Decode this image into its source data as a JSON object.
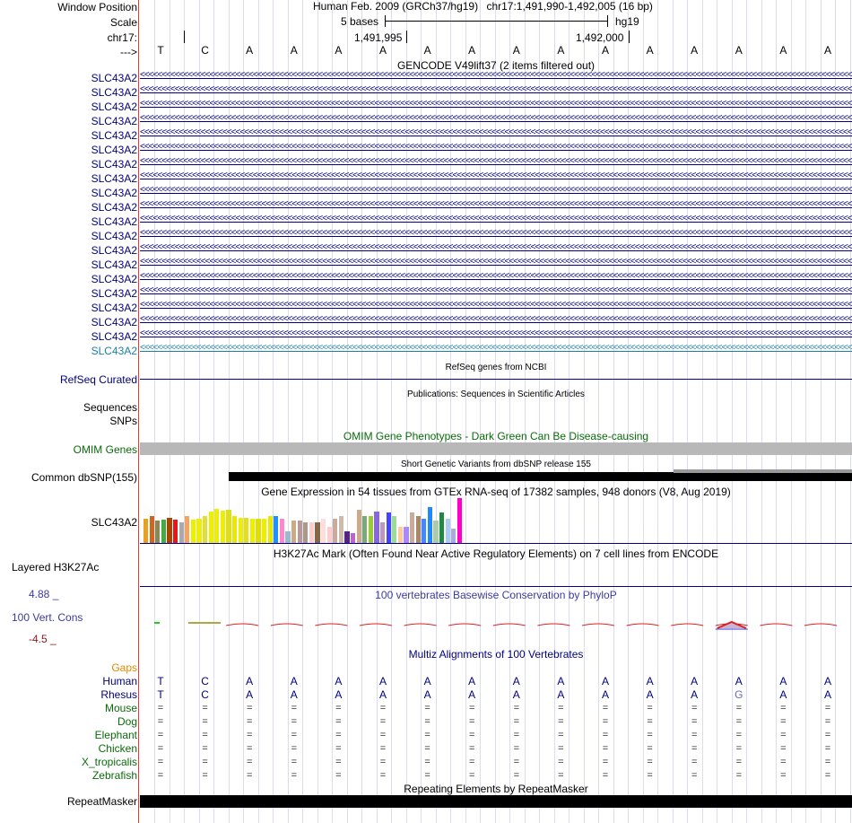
{
  "header": {
    "window_position_label": "Window Position",
    "scale_label": "Scale",
    "chrom_label": "chr17:",
    "strand_label": "--->",
    "assembly_text": "Human Feb. 2009 (GRCh37/hg19)",
    "position_text": "chr17:1,491,990-1,492,005 (16 bp)",
    "scale_text": "5 bases",
    "db_text": "hg19",
    "tick1": "1,491,995",
    "tick2": "1,492,000"
  },
  "sequence": [
    "T",
    "C",
    "A",
    "A",
    "A",
    "A",
    "A",
    "A",
    "A",
    "A",
    "A",
    "A",
    "A",
    "A",
    "A",
    "A"
  ],
  "gencode": {
    "title": "GENCODE V49lift37 (2 items filtered out)",
    "transcripts": [
      "SLC43A2",
      "SLC43A2",
      "SLC43A2",
      "SLC43A2",
      "SLC43A2",
      "SLC43A2",
      "SLC43A2",
      "SLC43A2",
      "SLC43A2",
      "SLC43A2",
      "SLC43A2",
      "SLC43A2",
      "SLC43A2",
      "SLC43A2",
      "SLC43A2",
      "SLC43A2",
      "SLC43A2",
      "SLC43A2",
      "SLC43A2",
      "SLC43A2"
    ],
    "strand_glyphs": "<<<<<<<<<<<<<<<<<<<<<<<<<<<<<<<<<<<<<<<<<<<<<<<<<<<<<<<<<<<<<<<<<<<<<<<<<<<<<<<<<<<<<<<<<<<<<<<<<<<<<<<<<<<<<<<<<<<<<<<<<<<<<<<<<<<<<<<<<<<<<<<<<<<<<<<<<<<<<<<<<<<<<<<<<<<<<<<<<<",
    "line_color": "#000080",
    "last_line_color": "#1a7fa8"
  },
  "refseq": {
    "label": "RefSeq Curated",
    "title": "RefSeq genes from NCBI"
  },
  "publications": {
    "label1": "Sequences",
    "label2": "SNPs",
    "title": "Publications: Sequences in Scientific Articles"
  },
  "omim": {
    "label": "OMIM Genes",
    "title": "OMIM Gene Phenotypes - Dark Green Can Be Disease-causing",
    "color": "#0a6b0a"
  },
  "dbsnp": {
    "label": "Common dbSNP(155)",
    "title": "Short Genetic Variants from dbSNP release 155"
  },
  "gtex": {
    "label": "SLC43A2",
    "title": "Gene Expression in 54 tissues from GTEx RNA-seq of 17382 samples, 948 donors (V8, Aug 2019)",
    "levels": [
      0.54,
      0.59,
      0.49,
      0.51,
      0.57,
      0.51,
      0.46,
      0.59,
      0.51,
      0.54,
      0.59,
      0.69,
      0.76,
      0.72,
      0.74,
      0.59,
      0.57,
      0.57,
      0.54,
      0.54,
      0.54,
      0.59,
      0.59,
      0.54,
      0.26,
      0.49,
      0.49,
      0.46,
      0.46,
      0.46,
      0.54,
      0.36,
      0.54,
      0.59,
      0.26,
      0.21,
      0.74,
      0.59,
      0.59,
      0.69,
      0.46,
      0.67,
      0.59,
      0.36,
      0.36,
      0.67,
      0.59,
      0.54,
      0.79,
      0.49,
      0.67,
      0.54,
      0.31,
      1.0
    ],
    "colors": [
      "#e8a020",
      "#cc6622",
      "#888855",
      "#44aa44",
      "#aa4400",
      "#e81818",
      "#aaaaaa",
      "#f4a460",
      "#eeee00",
      "#eeee00",
      "#dddd44",
      "#eeee00",
      "#eeee00",
      "#eeee00",
      "#dddd22",
      "#e8e800",
      "#eeee00",
      "#e0e020",
      "#eeee00",
      "#e0e000",
      "#eeee00",
      "#e8e800",
      "#1e90ff",
      "#ff88cc",
      "#99bbcc",
      "#ccaa88",
      "#bb9999",
      "#aa9988",
      "#ffcccc",
      "#886644",
      "#ffdddd",
      "#ffcccc",
      "#ccaa99",
      "#ccbbaa",
      "#552288",
      "#bb66cc",
      "#ccaa88",
      "#77aa77",
      "#99cc33",
      "#8866dd",
      "#bb99bb",
      "#4444ff",
      "#99dd99",
      "#ffcc99",
      "#aa88ff",
      "#ccaa99",
      "#aa8866",
      "#4488ff",
      "#2288ff",
      "#aaccaa",
      "#228844",
      "#aaccee",
      "#aaaadd",
      "#ff00cc"
    ],
    "line_color": "#000080"
  },
  "h3k27ac": {
    "label": "Layered H3K27Ac",
    "title": "H3K27Ac Mark (Often Found Near Active Regulatory Elements) on 7 cell lines from ENCODE"
  },
  "phylop": {
    "label": "100 Vert. Cons",
    "max_label": "4.88 _",
    "min_label": "-4.5 _",
    "title": "100 vertebrates Basewise Conservation by PhyloP",
    "color": "#3b3b9e",
    "pos_color": "#e02020",
    "neg_color": "#3b3bd0"
  },
  "multiz": {
    "title": "Multiz Alignments of 100 Vertebrates",
    "gaps_label": "Gaps",
    "gaps_color": "#e08a00",
    "species_color": "#0a6b0a",
    "species": [
      {
        "name": "Human",
        "seq": [
          "T",
          "C",
          "A",
          "A",
          "A",
          "A",
          "A",
          "A",
          "A",
          "A",
          "A",
          "A",
          "A",
          "A",
          "A",
          "A"
        ]
      },
      {
        "name": "Rhesus",
        "seq": [
          "T",
          "C",
          "A",
          "A",
          "A",
          "A",
          "A",
          "A",
          "A",
          "A",
          "A",
          "A",
          "A",
          "G",
          "A",
          "A"
        ]
      },
      {
        "name": "Mouse",
        "seq": [
          "=",
          "=",
          "=",
          "=",
          "=",
          "=",
          "=",
          "=",
          "=",
          "=",
          "=",
          "=",
          "=",
          "=",
          "=",
          "="
        ]
      },
      {
        "name": "Dog",
        "seq": [
          "=",
          "=",
          "=",
          "=",
          "=",
          "=",
          "=",
          "=",
          "=",
          "=",
          "=",
          "=",
          "=",
          "=",
          "=",
          "="
        ]
      },
      {
        "name": "Elephant",
        "seq": [
          "=",
          "=",
          "=",
          "=",
          "=",
          "=",
          "=",
          "=",
          "=",
          "=",
          "=",
          "=",
          "=",
          "=",
          "=",
          "="
        ]
      },
      {
        "name": "Chicken",
        "seq": [
          "=",
          "=",
          "=",
          "=",
          "=",
          "=",
          "=",
          "=",
          "=",
          "=",
          "=",
          "=",
          "=",
          "=",
          "=",
          "="
        ]
      },
      {
        "name": "X_tropicalis",
        "seq": [
          "=",
          "=",
          "=",
          "=",
          "=",
          "=",
          "=",
          "=",
          "=",
          "=",
          "=",
          "=",
          "=",
          "=",
          "=",
          "="
        ]
      },
      {
        "name": "Zebrafish",
        "seq": [
          "=",
          "=",
          "=",
          "=",
          "=",
          "=",
          "=",
          "=",
          "=",
          "=",
          "=",
          "=",
          "=",
          "=",
          "=",
          "="
        ]
      }
    ]
  },
  "repeatmasker": {
    "label": "RepeatMasker",
    "title": "Repeating Elements by RepeatMasker"
  }
}
